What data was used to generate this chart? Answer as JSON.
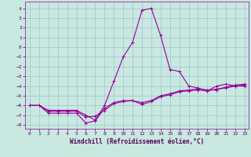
{
  "xlabel": "Windchill (Refroidissement éolien,°C)",
  "background_color": "#c8e8e0",
  "grid_color": "#99bbcc",
  "line_color": "#990099",
  "xlim_min": -0.5,
  "xlim_max": 23.4,
  "ylim_min": -8.4,
  "ylim_max": 4.7,
  "xticks": [
    0,
    1,
    2,
    3,
    4,
    5,
    6,
    7,
    8,
    9,
    10,
    11,
    12,
    13,
    14,
    15,
    16,
    17,
    18,
    19,
    20,
    21,
    22,
    23
  ],
  "yticks": [
    -8,
    -7,
    -6,
    -5,
    -4,
    -3,
    -2,
    -1,
    0,
    1,
    2,
    3,
    4
  ],
  "line1_x": [
    0,
    1,
    2,
    3,
    4,
    5,
    6,
    7,
    8,
    9,
    10,
    11,
    12,
    13,
    14,
    15,
    16,
    17,
    18,
    19,
    20,
    21,
    22,
    23
  ],
  "line1_y": [
    -6.0,
    -6.0,
    -6.5,
    -6.5,
    -6.5,
    -6.5,
    -7.0,
    -7.5,
    -6.0,
    -3.5,
    -1.0,
    0.5,
    3.8,
    4.0,
    1.2,
    -2.3,
    -2.5,
    -4.0,
    -4.2,
    -4.5,
    -4.0,
    -3.8,
    -4.0,
    -4.0
  ],
  "line2_x": [
    0,
    1,
    2,
    3,
    4,
    5,
    6,
    7,
    8,
    9,
    10,
    11,
    12,
    13,
    14,
    15,
    16,
    17,
    18,
    19,
    20,
    21,
    22,
    23
  ],
  "line2_y": [
    -6.0,
    -6.0,
    -6.8,
    -6.8,
    -6.8,
    -6.8,
    -7.8,
    -7.6,
    -6.3,
    -5.7,
    -5.5,
    -5.5,
    -5.9,
    -5.6,
    -5.1,
    -4.9,
    -4.6,
    -4.5,
    -4.4,
    -4.5,
    -4.3,
    -4.2,
    -4.0,
    -3.9
  ],
  "line3_x": [
    0,
    1,
    2,
    3,
    4,
    5,
    6,
    7,
    8,
    9,
    10,
    11,
    12,
    13,
    14,
    15,
    16,
    17,
    18,
    19,
    20,
    21,
    22,
    23
  ],
  "line3_y": [
    -6.0,
    -6.0,
    -6.6,
    -6.6,
    -6.6,
    -6.6,
    -7.2,
    -7.1,
    -6.5,
    -5.8,
    -5.6,
    -5.5,
    -5.7,
    -5.5,
    -5.0,
    -4.8,
    -4.5,
    -4.4,
    -4.3,
    -4.4,
    -4.4,
    -4.1,
    -3.9,
    -3.8
  ],
  "tick_label_color": "#550055",
  "tick_fontsize": 4.5,
  "xlabel_fontsize": 5.5,
  "linewidth": 0.8,
  "marker_size": 2.5,
  "marker_ew": 0.7
}
